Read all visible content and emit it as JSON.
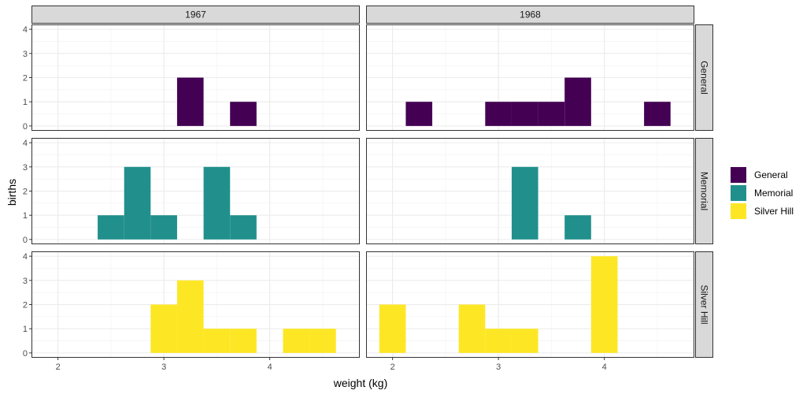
{
  "chart_data": {
    "type": "bar",
    "subtype": "faceted-histogram",
    "title": "",
    "xlabel": "weight (kg)",
    "ylabel": "births",
    "xlim": [
      1.75,
      4.85
    ],
    "ylim": [
      -0.2,
      4.2
    ],
    "x_ticks": [
      2,
      3,
      4
    ],
    "y_ticks": [
      0,
      1,
      2,
      3,
      4
    ],
    "bin_width": 0.25,
    "grid": true,
    "legend_position": "right",
    "facet_columns": [
      "1967",
      "1968"
    ],
    "facet_rows": [
      "General",
      "Memorial",
      "Silver Hill"
    ],
    "series": [
      {
        "name": "General",
        "color": "#440154",
        "panels": {
          "1967": {
            "bins_start": [
              3.125,
              3.625
            ],
            "counts": [
              2,
              1
            ]
          },
          "1968": {
            "bins_start": [
              2.125,
              2.875,
              3.125,
              3.375,
              3.625,
              4.375
            ],
            "counts": [
              1,
              1,
              1,
              1,
              2,
              1
            ]
          }
        }
      },
      {
        "name": "Memorial",
        "color": "#21908C",
        "panels": {
          "1967": {
            "bins_start": [
              2.375,
              2.625,
              2.875,
              3.375,
              3.625
            ],
            "counts": [
              1,
              3,
              1,
              3,
              1
            ]
          },
          "1968": {
            "bins_start": [
              3.125,
              3.625
            ],
            "counts": [
              3,
              1
            ]
          }
        }
      },
      {
        "name": "Silver Hill",
        "color": "#FDE725",
        "panels": {
          "1967": {
            "bins_start": [
              2.875,
              3.125,
              3.375,
              3.625,
              4.125,
              4.375
            ],
            "counts": [
              2,
              3,
              1,
              1,
              1,
              1
            ]
          },
          "1968": {
            "bins_start": [
              1.875,
              2.625,
              2.875,
              3.125,
              3.875
            ],
            "counts": [
              2,
              2,
              1,
              1,
              4
            ]
          }
        }
      }
    ]
  }
}
